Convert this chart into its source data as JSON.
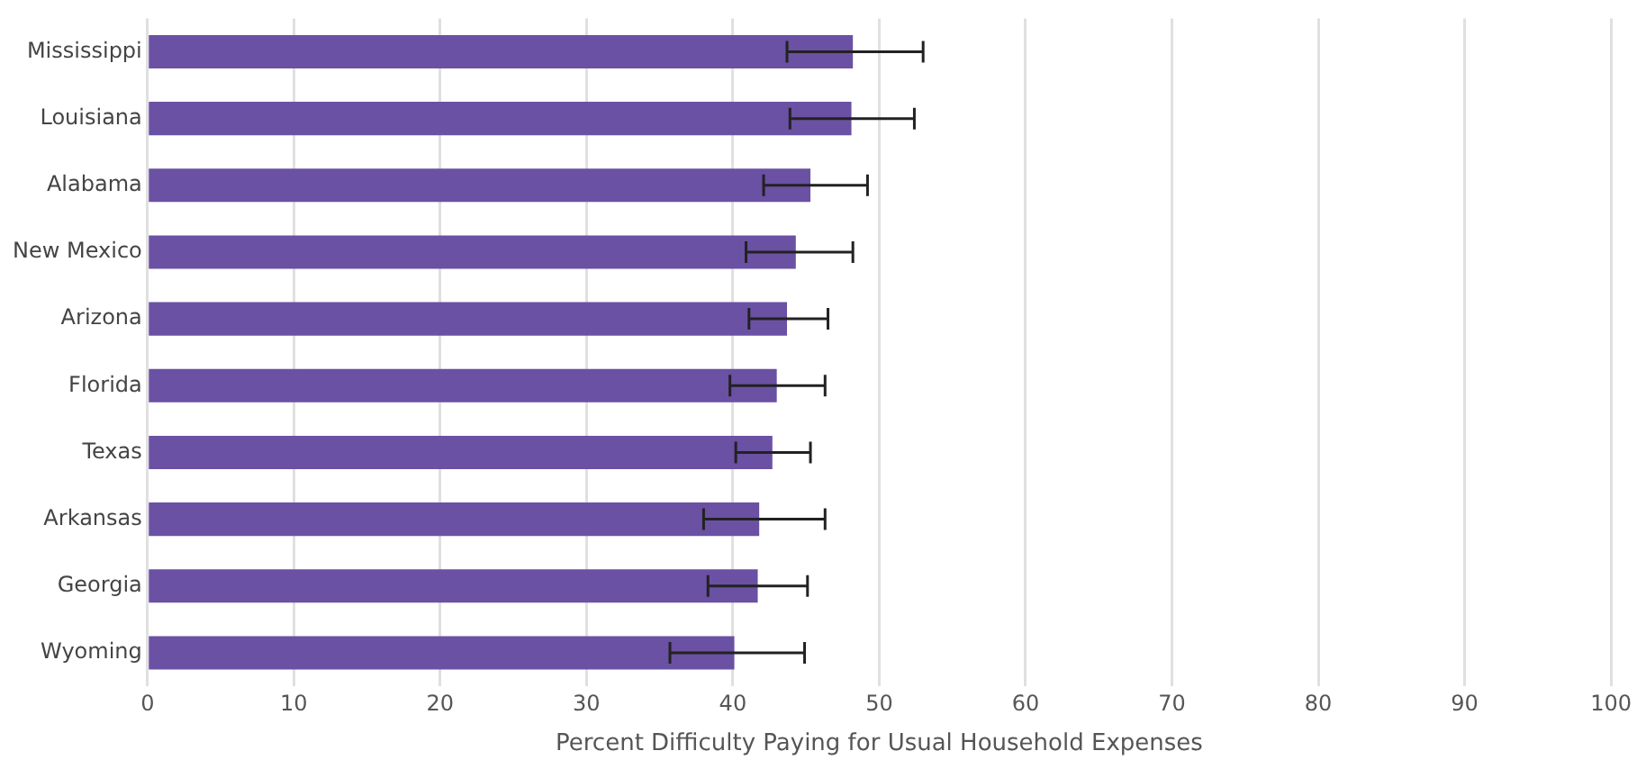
{
  "chart_data": {
    "type": "bar",
    "orientation": "horizontal",
    "xlabel": "Percent Difficulty Paying for Usual Household Expenses",
    "categories": [
      "Mississippi",
      "Louisiana",
      "Alabama",
      "New Mexico",
      "Arizona",
      "Florida",
      "Texas",
      "Arkansas",
      "Georgia",
      "Wyoming"
    ],
    "values": [
      48.2,
      48.1,
      45.3,
      44.3,
      43.7,
      43.0,
      42.7,
      41.8,
      41.7,
      40.1
    ],
    "errors": [
      [
        43.7,
        53.0
      ],
      [
        43.9,
        52.4
      ],
      [
        42.1,
        49.2
      ],
      [
        40.9,
        48.2
      ],
      [
        41.1,
        46.5
      ],
      [
        39.8,
        46.3
      ],
      [
        40.2,
        45.3
      ],
      [
        38.0,
        46.3
      ],
      [
        38.3,
        45.1
      ],
      [
        35.7,
        44.9
      ]
    ],
    "color": "#6a51a3",
    "xlim": [
      0,
      100
    ],
    "xticks": [
      0,
      10,
      20,
      30,
      40,
      50,
      60,
      70,
      80,
      90,
      100
    ],
    "grid": "x"
  }
}
